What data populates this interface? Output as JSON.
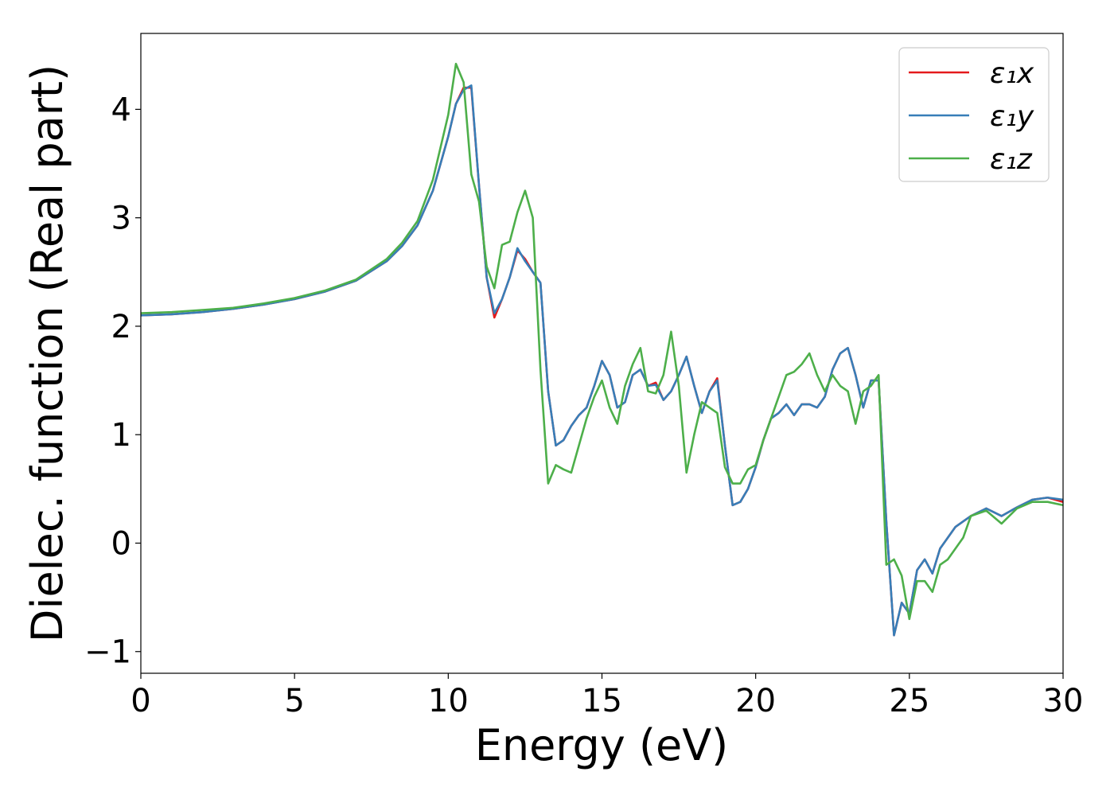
{
  "chart_data": {
    "type": "line",
    "xlabel": "Energy (eV)",
    "ylabel": "Dielec. function (Real part)",
    "xlim": [
      0,
      30
    ],
    "ylim": [
      -1.2,
      4.7
    ],
    "xticks": [
      0,
      5,
      10,
      15,
      20,
      25,
      30
    ],
    "yticks": [
      {
        "value": -1,
        "label": "−1"
      },
      0,
      1,
      2,
      3,
      4
    ],
    "grid": false,
    "legend": "upper right",
    "x": [
      0,
      1,
      2,
      3,
      4,
      5,
      6,
      7,
      8,
      8.5,
      9,
      9.5,
      10,
      10.25,
      10.5,
      10.75,
      11,
      11.25,
      11.5,
      11.75,
      12,
      12.25,
      12.5,
      12.75,
      13,
      13.25,
      13.5,
      13.75,
      14,
      14.25,
      14.5,
      14.75,
      15,
      15.25,
      15.5,
      15.75,
      16,
      16.25,
      16.5,
      16.75,
      17,
      17.25,
      17.5,
      17.75,
      18,
      18.25,
      18.5,
      18.75,
      19,
      19.25,
      19.5,
      19.75,
      20,
      20.25,
      20.5,
      20.75,
      21,
      21.25,
      21.5,
      21.75,
      22,
      22.25,
      22.5,
      22.75,
      23,
      23.25,
      23.5,
      23.75,
      24,
      24.25,
      24.5,
      24.75,
      25,
      25.25,
      25.5,
      25.75,
      26,
      26.25,
      26.5,
      26.75,
      27,
      27.5,
      28,
      28.5,
      29,
      29.5,
      30
    ],
    "series": [
      {
        "name": "ε₁x",
        "color": "#e41a1c",
        "values": [
          2.1,
          2.11,
          2.13,
          2.16,
          2.2,
          2.25,
          2.32,
          2.42,
          2.6,
          2.74,
          2.93,
          3.25,
          3.75,
          4.05,
          4.2,
          4.2,
          3.3,
          2.45,
          2.08,
          2.25,
          2.45,
          2.7,
          2.62,
          2.5,
          2.4,
          1.4,
          0.9,
          0.95,
          1.08,
          1.18,
          1.25,
          1.45,
          1.68,
          1.55,
          1.25,
          1.3,
          1.55,
          1.6,
          1.45,
          1.48,
          1.32,
          1.4,
          1.55,
          1.72,
          1.45,
          1.2,
          1.4,
          1.52,
          0.9,
          0.35,
          0.38,
          0.5,
          0.7,
          0.95,
          1.15,
          1.2,
          1.28,
          1.18,
          1.28,
          1.28,
          1.25,
          1.35,
          1.6,
          1.75,
          1.8,
          1.55,
          1.25,
          1.5,
          1.5,
          0.2,
          -0.85,
          -0.55,
          -0.65,
          -0.25,
          -0.15,
          -0.28,
          -0.05,
          0.05,
          0.15,
          0.2,
          0.25,
          0.32,
          0.25,
          0.33,
          0.4,
          0.42,
          0.38
        ]
      },
      {
        "name": "ε₁y",
        "color": "#377eb8",
        "values": [
          2.1,
          2.11,
          2.13,
          2.16,
          2.2,
          2.25,
          2.32,
          2.42,
          2.6,
          2.74,
          2.93,
          3.25,
          3.75,
          4.05,
          4.18,
          4.22,
          3.3,
          2.45,
          2.12,
          2.25,
          2.45,
          2.72,
          2.6,
          2.5,
          2.4,
          1.4,
          0.9,
          0.95,
          1.08,
          1.18,
          1.25,
          1.45,
          1.68,
          1.55,
          1.25,
          1.3,
          1.55,
          1.6,
          1.45,
          1.46,
          1.32,
          1.4,
          1.55,
          1.72,
          1.45,
          1.2,
          1.4,
          1.5,
          0.9,
          0.35,
          0.38,
          0.5,
          0.7,
          0.95,
          1.15,
          1.2,
          1.28,
          1.18,
          1.28,
          1.28,
          1.25,
          1.35,
          1.6,
          1.75,
          1.8,
          1.55,
          1.25,
          1.5,
          1.5,
          0.2,
          -0.85,
          -0.55,
          -0.65,
          -0.25,
          -0.15,
          -0.28,
          -0.05,
          0.05,
          0.15,
          0.2,
          0.25,
          0.32,
          0.25,
          0.33,
          0.4,
          0.42,
          0.4
        ]
      },
      {
        "name": "ε₁z",
        "color": "#4daf4a",
        "values": [
          2.12,
          2.13,
          2.15,
          2.17,
          2.21,
          2.26,
          2.33,
          2.43,
          2.62,
          2.77,
          2.97,
          3.35,
          3.95,
          4.42,
          4.25,
          3.4,
          3.15,
          2.55,
          2.35,
          2.75,
          2.78,
          3.05,
          3.25,
          3.0,
          1.6,
          0.55,
          0.72,
          0.68,
          0.65,
          0.9,
          1.15,
          1.35,
          1.5,
          1.25,
          1.1,
          1.45,
          1.65,
          1.8,
          1.4,
          1.38,
          1.55,
          1.95,
          1.45,
          0.65,
          1.0,
          1.3,
          1.25,
          1.2,
          0.7,
          0.55,
          0.55,
          0.68,
          0.72,
          0.95,
          1.15,
          1.35,
          1.55,
          1.58,
          1.65,
          1.75,
          1.55,
          1.4,
          1.55,
          1.45,
          1.4,
          1.1,
          1.4,
          1.45,
          1.55,
          -0.2,
          -0.15,
          -0.3,
          -0.7,
          -0.35,
          -0.35,
          -0.45,
          -0.2,
          -0.15,
          -0.05,
          0.05,
          0.25,
          0.3,
          0.18,
          0.32,
          0.38,
          0.38,
          0.35
        ]
      }
    ]
  }
}
